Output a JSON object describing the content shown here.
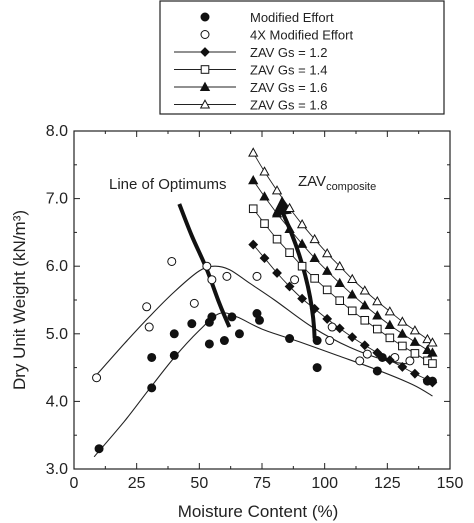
{
  "chart_data": {
    "type": "scatter",
    "xlabel": "Moisture Content (%)",
    "ylabel": "Dry Unit Weight (kN/m³)",
    "xlim": [
      0,
      150
    ],
    "ylim": [
      3.0,
      8.0
    ],
    "x_ticks": [
      "0",
      "25",
      "50",
      "75",
      "100",
      "125",
      "150"
    ],
    "y_ticks": [
      "3.0",
      "4.0",
      "5.0",
      "6.0",
      "7.0",
      "8.0"
    ],
    "legend": {
      "placement": "top-right",
      "entries": [
        {
          "label": "Modified Effort",
          "marker": "filled-circle"
        },
        {
          "label": "4X Modified Effort",
          "marker": "open-circle"
        },
        {
          "label": "ZAV Gs = 1.2",
          "marker": "filled-diamond"
        },
        {
          "label": "ZAV Gs = 1.4",
          "marker": "open-square"
        },
        {
          "label": "ZAV Gs = 1.6",
          "marker": "filled-triangle"
        },
        {
          "label": "ZAV Gs = 1.8",
          "marker": "open-triangle"
        }
      ]
    },
    "annotations": {
      "line_of_optimums": "Line of Optimums",
      "zav_main": "ZAV",
      "zav_sub": "composite"
    },
    "series": [
      {
        "name": "Modified Effort",
        "marker": "filled-circle",
        "x": [
          10,
          31,
          31,
          40,
          40,
          47,
          54,
          54,
          55,
          60,
          63,
          66,
          73,
          74,
          86,
          97,
          97,
          121,
          123,
          141,
          143
        ],
        "y": [
          3.3,
          4.2,
          4.65,
          4.68,
          5.0,
          5.15,
          5.17,
          4.85,
          5.25,
          4.9,
          5.25,
          5.0,
          5.3,
          5.2,
          4.93,
          4.9,
          4.5,
          4.45,
          4.65,
          4.3,
          4.3
        ]
      },
      {
        "name": "4X Modified Effort",
        "marker": "open-circle",
        "x": [
          9,
          29,
          30,
          39,
          48,
          53,
          55,
          61,
          73,
          88,
          102,
          103,
          114,
          117,
          128,
          134
        ],
        "y": [
          4.35,
          5.4,
          5.1,
          6.07,
          5.45,
          6.0,
          5.8,
          5.85,
          5.85,
          5.8,
          4.9,
          5.1,
          4.6,
          4.7,
          4.65,
          4.6
        ]
      },
      {
        "name": "Modified Effort fit",
        "line": "smooth",
        "x": [
          8,
          20,
          30,
          40,
          50,
          58,
          65,
          75,
          90,
          105,
          120,
          135,
          143
        ],
        "y": [
          3.18,
          3.7,
          4.18,
          4.65,
          5.05,
          5.3,
          5.25,
          5.07,
          4.88,
          4.68,
          4.48,
          4.25,
          4.08
        ]
      },
      {
        "name": "4X Modified Effort fit",
        "line": "smooth",
        "x": [
          8,
          20,
          30,
          40,
          50,
          56,
          62,
          70,
          80,
          95,
          110,
          125,
          135
        ],
        "y": [
          4.35,
          4.85,
          5.25,
          5.62,
          5.93,
          6.0,
          5.95,
          5.75,
          5.5,
          5.1,
          4.8,
          4.6,
          4.55
        ]
      },
      {
        "name": "ZAV Gs = 1.2",
        "marker": "filled-diamond",
        "x": [
          71.5,
          76,
          81,
          86,
          91,
          96,
          101,
          106,
          111,
          116,
          121,
          126,
          131,
          136,
          141,
          143
        ],
        "y": [
          6.32,
          6.12,
          5.9,
          5.7,
          5.52,
          5.37,
          5.22,
          5.08,
          4.95,
          4.83,
          4.72,
          4.61,
          4.51,
          4.41,
          4.32,
          4.28
        ]
      },
      {
        "name": "ZAV Gs = 1.4",
        "marker": "open-square",
        "x": [
          71.5,
          76,
          81,
          86,
          91,
          96,
          101,
          106,
          111,
          116,
          121,
          126,
          131,
          136,
          141,
          143
        ],
        "y": [
          6.85,
          6.63,
          6.4,
          6.2,
          6.0,
          5.82,
          5.65,
          5.49,
          5.34,
          5.2,
          5.07,
          4.94,
          4.82,
          4.71,
          4.6,
          4.56
        ]
      },
      {
        "name": "ZAV Gs = 1.6",
        "marker": "filled-triangle",
        "x": [
          71.5,
          76,
          81,
          86,
          91,
          96,
          101,
          106,
          111,
          116,
          121,
          126,
          131,
          136,
          141,
          143
        ],
        "y": [
          7.27,
          7.03,
          6.78,
          6.55,
          6.33,
          6.12,
          5.93,
          5.75,
          5.58,
          5.42,
          5.27,
          5.13,
          5.0,
          4.88,
          4.76,
          4.72
        ]
      },
      {
        "name": "ZAV Gs = 1.8",
        "marker": "open-triangle",
        "x": [
          71.5,
          76,
          81,
          86,
          91,
          96,
          101,
          106,
          111,
          116,
          121,
          126,
          131,
          136,
          141,
          143
        ],
        "y": [
          7.68,
          7.4,
          7.12,
          6.86,
          6.62,
          6.4,
          6.19,
          6.0,
          5.81,
          5.64,
          5.48,
          5.33,
          5.18,
          5.05,
          4.92,
          4.87
        ]
      }
    ],
    "optimum_line": {
      "x": [
        42,
        47,
        53,
        58,
        62
      ],
      "y": [
        6.92,
        6.45,
        5.95,
        5.45,
        5.1
      ]
    },
    "zav_arrow": {
      "from": [
        96,
        4.93
      ],
      "to": [
        83,
        7.02
      ]
    }
  }
}
